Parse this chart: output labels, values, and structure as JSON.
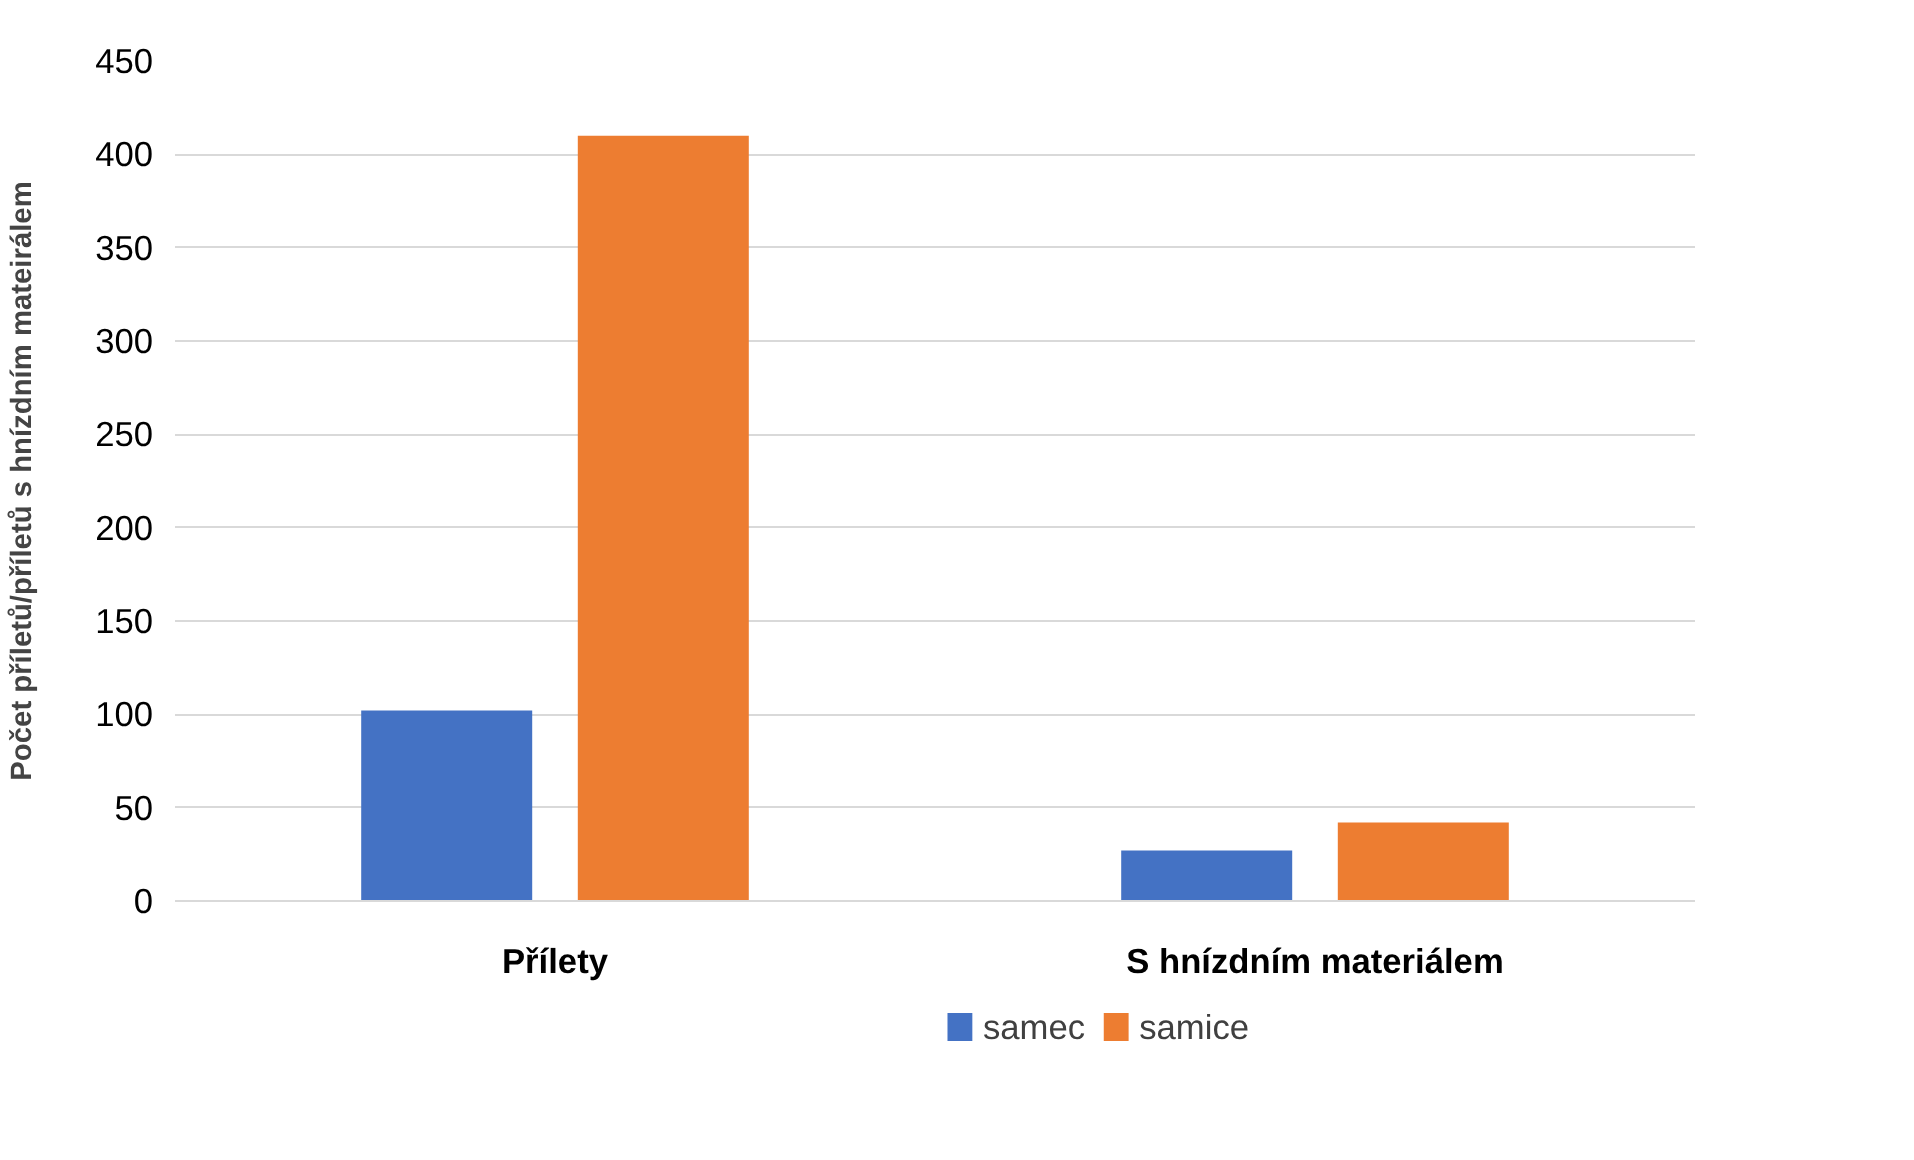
{
  "chart_data": {
    "type": "bar",
    "ylabel": "Počet příletů/příletů s hnízdním mateirálem",
    "categories": [
      "Přílety",
      "S hnízdním materiálem"
    ],
    "series": [
      {
        "name": "samec",
        "color": "#4472c4",
        "values": [
          102,
          27
        ]
      },
      {
        "name": "samice",
        "color": "#ed7d31",
        "values": [
          410,
          42
        ]
      }
    ],
    "ylim": [
      0,
      450
    ],
    "yticks": [
      0,
      50,
      100,
      150,
      200,
      250,
      300,
      350,
      400,
      450
    ],
    "grid": "y",
    "legend": "bottom"
  }
}
